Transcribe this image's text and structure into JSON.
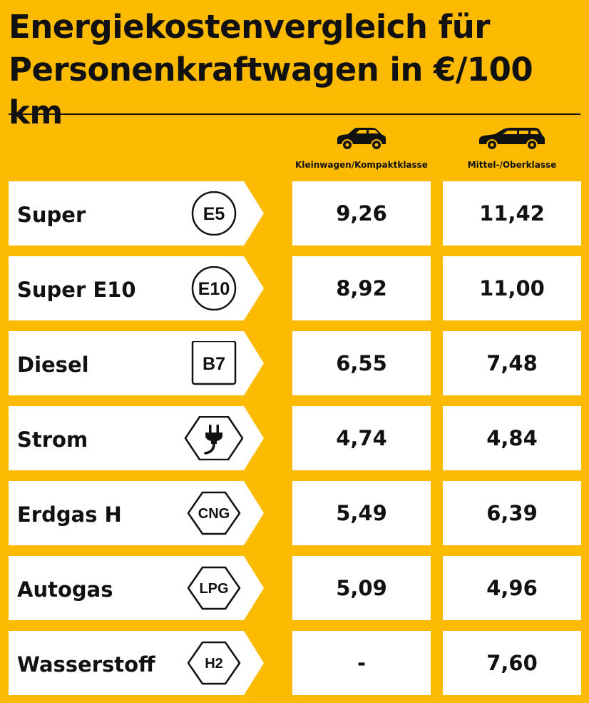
{
  "title": {
    "line1": "Energiekostenvergleich für",
    "line2": "Personenkraftwagen in €/100 km"
  },
  "colors": {
    "background": "#FCBA00",
    "box": "#FFFFFF",
    "text": "#111111"
  },
  "chart_data": {
    "type": "table",
    "unit": "€/100 km",
    "columns": [
      {
        "label": "Kleinwagen/Kompaktklasse",
        "icon": "small-car-icon"
      },
      {
        "label": "Mittel-/Oberklasse",
        "icon": "estate-car-icon"
      }
    ],
    "rows": [
      {
        "fuel": "Super",
        "badge": "E5",
        "badge_shape": "circle",
        "values": [
          "9,26",
          "11,42"
        ]
      },
      {
        "fuel": "Super E10",
        "badge": "E10",
        "badge_shape": "circle",
        "values": [
          "8,92",
          "11,00"
        ]
      },
      {
        "fuel": "Diesel",
        "badge": "B7",
        "badge_shape": "square",
        "values": [
          "6,55",
          "7,48"
        ]
      },
      {
        "fuel": "Strom",
        "badge": "",
        "badge_shape": "hexagon-plug",
        "values": [
          "4,74",
          "4,84"
        ]
      },
      {
        "fuel": "Erdgas H",
        "badge": "CNG",
        "badge_shape": "diamond",
        "values": [
          "5,49",
          "6,39"
        ]
      },
      {
        "fuel": "Autogas",
        "badge": "LPG",
        "badge_shape": "diamond",
        "values": [
          "5,09",
          "4,96"
        ]
      },
      {
        "fuel": "Wasserstoff",
        "badge": "H2",
        "badge_shape": "diamond",
        "values": [
          "-",
          "7,60"
        ]
      }
    ]
  }
}
